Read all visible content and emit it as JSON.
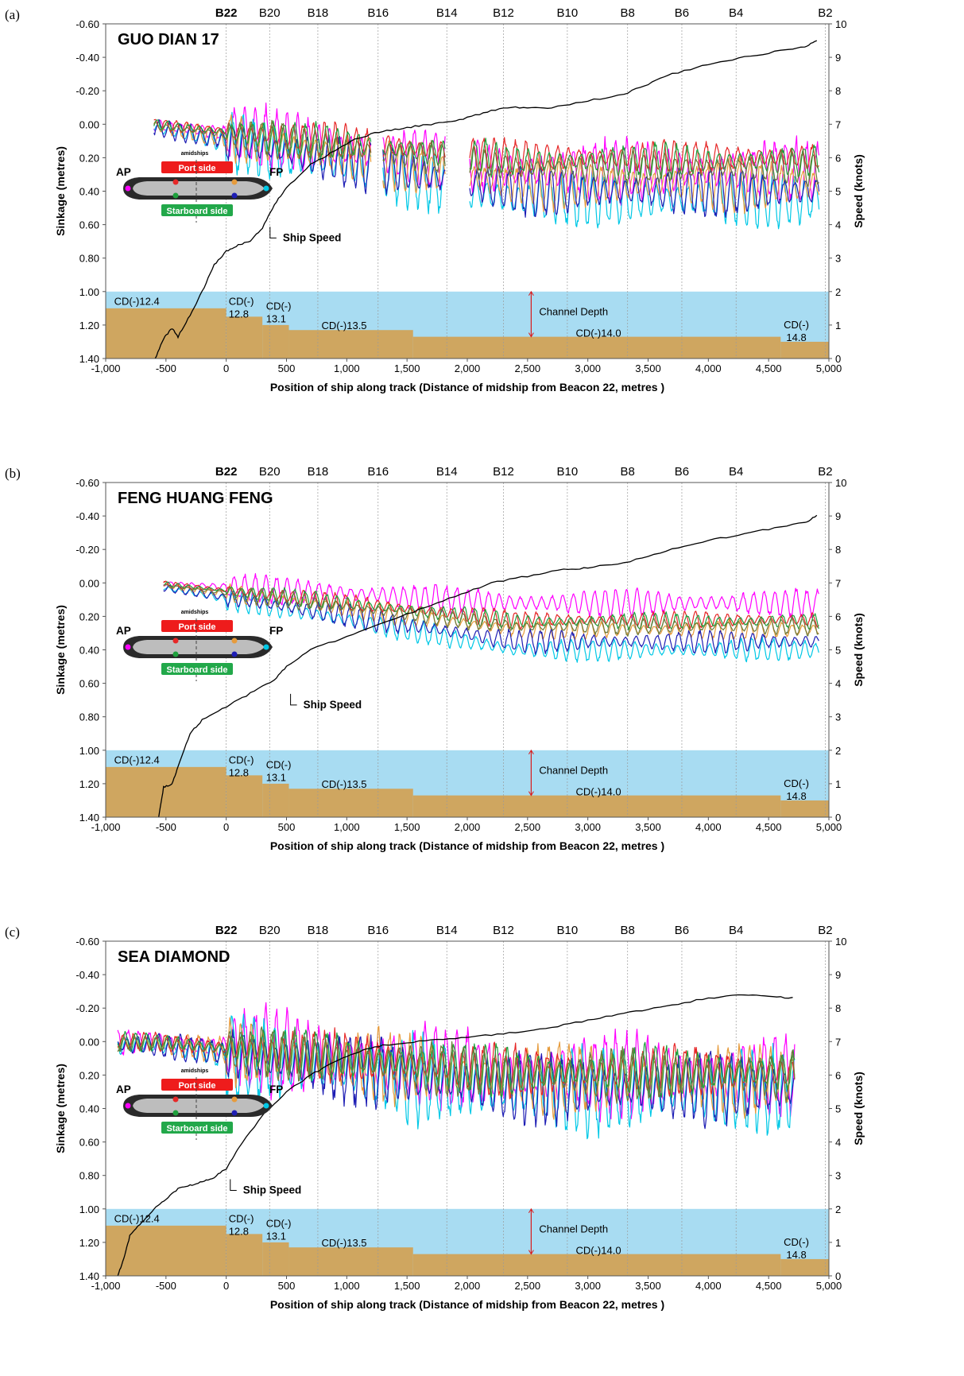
{
  "figure": {
    "x_axis_title": "Position of ship along track (Distance of midship from Beacon 22, metres )",
    "y_left_title": "Sinkage (metres)",
    "y_right_title": "Speed (knots)",
    "x_ticks": [
      "-1,000",
      "-500",
      "0",
      "500",
      "1,000",
      "1,500",
      "2,000",
      "2,500",
      "3,000",
      "3,500",
      "4,000",
      "4,500",
      "5,000"
    ],
    "y_left_ticks": [
      "-0.60",
      "-0.40",
      "-0.20",
      "0.00",
      "0.20",
      "0.40",
      "0.60",
      "0.80",
      "1.00",
      "1.20",
      "1.40"
    ],
    "y_right_ticks": [
      "10",
      "9",
      "8",
      "7",
      "6",
      "5",
      "4",
      "3",
      "2",
      "1",
      "0"
    ],
    "colors": {
      "water": "#a8dcf2",
      "seabed": "#cfa660",
      "speed": "#000000",
      "series": [
        "#ff00ff",
        "#00c8e6",
        "#e69b3c",
        "#1e1eb4",
        "#e62828",
        "#1ea03c",
        "#6e7a3a"
      ]
    },
    "diagram": {
      "amidships": "amidships",
      "port": "Port side",
      "starboard": "Starboard side",
      "ap": "AP",
      "fp": "FP",
      "port_color": "#ee1c1c",
      "starboard_color": "#22a84a"
    },
    "channel_depth_label": "Channel Depth",
    "ship_speed_label": "Ship Speed"
  },
  "chart_data": [
    {
      "panel": "(a)",
      "title": "GUO DIAN 17",
      "type": "line",
      "xlim": [
        -1000,
        5000
      ],
      "ylim_left": [
        1.4,
        -0.6
      ],
      "ylim_right": [
        0,
        10
      ],
      "beacons": [
        {
          "label": "B22",
          "x": 0,
          "bold": true
        },
        {
          "label": "B20",
          "x": 360
        },
        {
          "label": "B18",
          "x": 760
        },
        {
          "label": "B16",
          "x": 1260
        },
        {
          "label": "B14",
          "x": 1830
        },
        {
          "label": "B12",
          "x": 2300
        },
        {
          "label": "B10",
          "x": 2830
        },
        {
          "label": "B8",
          "x": 3330
        },
        {
          "label": "B6",
          "x": 3780
        },
        {
          "label": "B4",
          "x": 4230
        },
        {
          "label": "B2",
          "x": 4970
        }
      ],
      "channel_steps": [
        {
          "x0": -1000,
          "x1": 0,
          "depth": 1.1,
          "label": "CD(-)12.4"
        },
        {
          "x0": 0,
          "x1": 300,
          "depth": 1.15,
          "label": "CD(-)\n12.8"
        },
        {
          "x0": 300,
          "x1": 520,
          "depth": 1.2,
          "label": "CD(-)\n13.1"
        },
        {
          "x0": 520,
          "x1": 1550,
          "depth": 1.23,
          "label": "CD(-)13.5"
        },
        {
          "x0": 1550,
          "x1": 4600,
          "depth": 1.27,
          "label": "CD(-)14.0"
        },
        {
          "x0": 4600,
          "x1": 5000,
          "depth": 1.3,
          "label": "CD(-)\n14.8"
        }
      ],
      "speed_knots": {
        "x": [
          -590,
          -520,
          -450,
          -400,
          -300,
          -200,
          -100,
          0,
          100,
          200,
          300,
          400,
          500,
          700,
          900,
          1100,
          1300,
          1500,
          1700,
          1900,
          2100,
          2300,
          2500,
          2700,
          3000,
          3300,
          3500,
          3700,
          4000,
          4300,
          4600,
          4800,
          4900
        ],
        "y": [
          0,
          0.6,
          0.9,
          0.65,
          1.3,
          2.0,
          2.8,
          3.2,
          3.4,
          3.5,
          3.9,
          4.6,
          5.1,
          5.8,
          6.2,
          6.6,
          6.8,
          6.9,
          7.0,
          7.1,
          7.3,
          7.5,
          7.5,
          7.5,
          7.7,
          7.9,
          8.2,
          8.5,
          8.8,
          9.0,
          9.2,
          9.3,
          9.5
        ]
      },
      "sinkage_sections": [
        [
          -600,
          1200
        ],
        [
          1300,
          1820
        ],
        [
          2020,
          4920
        ]
      ],
      "sinkage_series": [
        {
          "name": "",
          "bow_mean": 0.28,
          "start_mean": 0.0,
          "amp": 0.22
        },
        {
          "name": "",
          "bow_mean": 0.45,
          "start_mean": 0.02,
          "amp": 0.2
        },
        {
          "name": "",
          "bow_mean": 0.36,
          "start_mean": 0.01,
          "amp": 0.18
        },
        {
          "name": "",
          "bow_mean": 0.4,
          "start_mean": 0.02,
          "amp": 0.18
        },
        {
          "name": "",
          "bow_mean": 0.2,
          "start_mean": 0.0,
          "amp": 0.12
        },
        {
          "name": "",
          "bow_mean": 0.22,
          "start_mean": 0.0,
          "amp": 0.12
        },
        {
          "name": "",
          "bow_mean": 0.26,
          "start_mean": 0.01,
          "amp": 0.12
        }
      ]
    },
    {
      "panel": "(b)",
      "title": "FENG HUANG FENG",
      "type": "line",
      "xlim": [
        -1000,
        5000
      ],
      "ylim_left": [
        1.4,
        -0.6
      ],
      "ylim_right": [
        0,
        10
      ],
      "beacons": [
        {
          "label": "B22",
          "x": 0,
          "bold": true
        },
        {
          "label": "B20",
          "x": 360
        },
        {
          "label": "B18",
          "x": 760
        },
        {
          "label": "B16",
          "x": 1260
        },
        {
          "label": "B14",
          "x": 1830
        },
        {
          "label": "B12",
          "x": 2300
        },
        {
          "label": "B10",
          "x": 2830
        },
        {
          "label": "B8",
          "x": 3330
        },
        {
          "label": "B6",
          "x": 3780
        },
        {
          "label": "B4",
          "x": 4230
        },
        {
          "label": "B2",
          "x": 4970
        }
      ],
      "channel_steps": [
        {
          "x0": -1000,
          "x1": 0,
          "depth": 1.1,
          "label": "CD(-)12.4"
        },
        {
          "x0": 0,
          "x1": 300,
          "depth": 1.15,
          "label": "CD(-)\n12.8"
        },
        {
          "x0": 300,
          "x1": 520,
          "depth": 1.2,
          "label": "CD(-)\n13.1"
        },
        {
          "x0": 520,
          "x1": 1550,
          "depth": 1.23,
          "label": "CD(-)13.5"
        },
        {
          "x0": 1550,
          "x1": 4600,
          "depth": 1.27,
          "label": "CD(-)14.0"
        },
        {
          "x0": 4600,
          "x1": 5000,
          "depth": 1.3,
          "label": "CD(-)\n14.8"
        }
      ],
      "speed_knots": {
        "x": [
          -560,
          -520,
          -450,
          -400,
          -300,
          -200,
          0,
          200,
          400,
          500,
          700,
          1000,
          1300,
          1600,
          1900,
          2200,
          2500,
          2800,
          3000,
          3300,
          3600,
          3900,
          4200,
          4500,
          4800,
          4900
        ],
        "y": [
          0,
          0.9,
          1.0,
          1.5,
          2.5,
          2.9,
          3.3,
          3.7,
          4.1,
          4.5,
          5.0,
          5.4,
          5.8,
          6.2,
          6.6,
          7.0,
          7.2,
          7.4,
          7.45,
          7.6,
          7.9,
          8.2,
          8.4,
          8.6,
          8.8,
          9.0
        ]
      },
      "sinkage_sections": [
        [
          -520,
          4920
        ]
      ],
      "sinkage_series": [
        {
          "name": "",
          "bow_mean": 0.12,
          "start_mean": 0.0,
          "amp": 0.1
        },
        {
          "name": "",
          "bow_mean": 0.4,
          "start_mean": 0.02,
          "amp": 0.08
        },
        {
          "name": "",
          "bow_mean": 0.28,
          "start_mean": 0.01,
          "amp": 0.07
        },
        {
          "name": "",
          "bow_mean": 0.35,
          "start_mean": 0.02,
          "amp": 0.08
        },
        {
          "name": "",
          "bow_mean": 0.22,
          "start_mean": 0.0,
          "amp": 0.06
        },
        {
          "name": "",
          "bow_mean": 0.23,
          "start_mean": 0.0,
          "amp": 0.06
        },
        {
          "name": "",
          "bow_mean": 0.26,
          "start_mean": 0.01,
          "amp": 0.06
        }
      ]
    },
    {
      "panel": "(c)",
      "title": "SEA DIAMOND",
      "type": "line",
      "xlim": [
        -1000,
        5000
      ],
      "ylim_left": [
        1.4,
        -0.6
      ],
      "ylim_right": [
        0,
        10
      ],
      "beacons": [
        {
          "label": "B22",
          "x": 0,
          "bold": true
        },
        {
          "label": "B20",
          "x": 360
        },
        {
          "label": "B18",
          "x": 760
        },
        {
          "label": "B16",
          "x": 1260
        },
        {
          "label": "B14",
          "x": 1830
        },
        {
          "label": "B12",
          "x": 2300
        },
        {
          "label": "B10",
          "x": 2830
        },
        {
          "label": "B8",
          "x": 3330
        },
        {
          "label": "B6",
          "x": 3780
        },
        {
          "label": "B4",
          "x": 4230
        },
        {
          "label": "B2",
          "x": 4970
        }
      ],
      "channel_steps": [
        {
          "x0": -1000,
          "x1": 0,
          "depth": 1.1,
          "label": "CD(-)12.4"
        },
        {
          "x0": 0,
          "x1": 300,
          "depth": 1.15,
          "label": "CD(-)\n12.8"
        },
        {
          "x0": 300,
          "x1": 520,
          "depth": 1.2,
          "label": "CD(-)\n13.1"
        },
        {
          "x0": 520,
          "x1": 1550,
          "depth": 1.23,
          "label": "CD(-)13.5"
        },
        {
          "x0": 1550,
          "x1": 4600,
          "depth": 1.27,
          "label": "CD(-)14.0"
        },
        {
          "x0": 4600,
          "x1": 5000,
          "depth": 1.3,
          "label": "CD(-)\n14.8"
        }
      ],
      "speed_knots": {
        "x": [
          -900,
          -850,
          -800,
          -700,
          -600,
          -500,
          -400,
          -300,
          -200,
          -100,
          0,
          100,
          300,
          500,
          700,
          900,
          1100,
          1300,
          1600,
          1900,
          2200,
          2500,
          2800,
          3100,
          3400,
          3700,
          4000,
          4300,
          4500,
          4700
        ],
        "y": [
          0,
          0.5,
          1.2,
          1.6,
          2.0,
          2.3,
          2.6,
          2.7,
          2.8,
          2.95,
          3.2,
          3.8,
          4.8,
          5.5,
          6.0,
          6.4,
          6.7,
          6.9,
          7.0,
          7.1,
          7.2,
          7.3,
          7.5,
          7.7,
          7.9,
          8.1,
          8.3,
          8.4,
          8.35,
          8.3
        ]
      },
      "sinkage_sections": [
        [
          -900,
          4720
        ]
      ],
      "sinkage_series": [
        {
          "name": "",
          "bow_mean": 0.2,
          "start_mean": 0.0,
          "amp": 0.3
        },
        {
          "name": "",
          "bow_mean": 0.3,
          "start_mean": 0.02,
          "amp": 0.3
        },
        {
          "name": "",
          "bow_mean": 0.22,
          "start_mean": 0.01,
          "amp": 0.25
        },
        {
          "name": "",
          "bow_mean": 0.28,
          "start_mean": 0.02,
          "amp": 0.25
        },
        {
          "name": "",
          "bow_mean": 0.18,
          "start_mean": 0.0,
          "amp": 0.18
        },
        {
          "name": "",
          "bow_mean": 0.18,
          "start_mean": 0.0,
          "amp": 0.18
        },
        {
          "name": "",
          "bow_mean": 0.2,
          "start_mean": 0.01,
          "amp": 0.18
        }
      ]
    }
  ]
}
